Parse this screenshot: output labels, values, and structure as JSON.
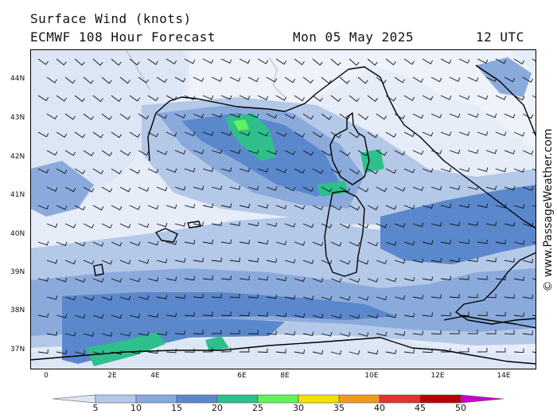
{
  "header": {
    "title": "Surface Wind (knots)",
    "model": "ECMWF 108 Hour Forecast",
    "date": "Mon 05 May 2025",
    "time": "12 UTC"
  },
  "credit": "© www.PassageWeather.com",
  "axes": {
    "lat_labels": [
      "44N",
      "43N",
      "42N",
      "41N",
      "40N",
      "39N",
      "38N",
      "37N"
    ],
    "lon_labels": [
      "0",
      "2E",
      "4E",
      "6E",
      "8E",
      "10E",
      "12E",
      "14E"
    ]
  },
  "colorbar": {
    "labels": [
      "5",
      "10",
      "15",
      "20",
      "25",
      "30",
      "35",
      "40",
      "45",
      "50"
    ],
    "colors": [
      "#dde6f5",
      "#b4c8e8",
      "#8aaadc",
      "#5b87cc",
      "#2fbf8c",
      "#5ff55a",
      "#f2e200",
      "#f39a1a",
      "#e63030",
      "#bb0000",
      "#cc00cc"
    ]
  },
  "map_colors": {
    "sea_light": "#e6edf8",
    "band_10": "#b4c8e8",
    "band_15": "#8aaadc",
    "band_20": "#5b87cc",
    "band_25": "#2fbf8c",
    "band_30": "#5ff55a",
    "land": "#dde6f5",
    "coast": "#000000",
    "border": "#aaaaaa"
  }
}
